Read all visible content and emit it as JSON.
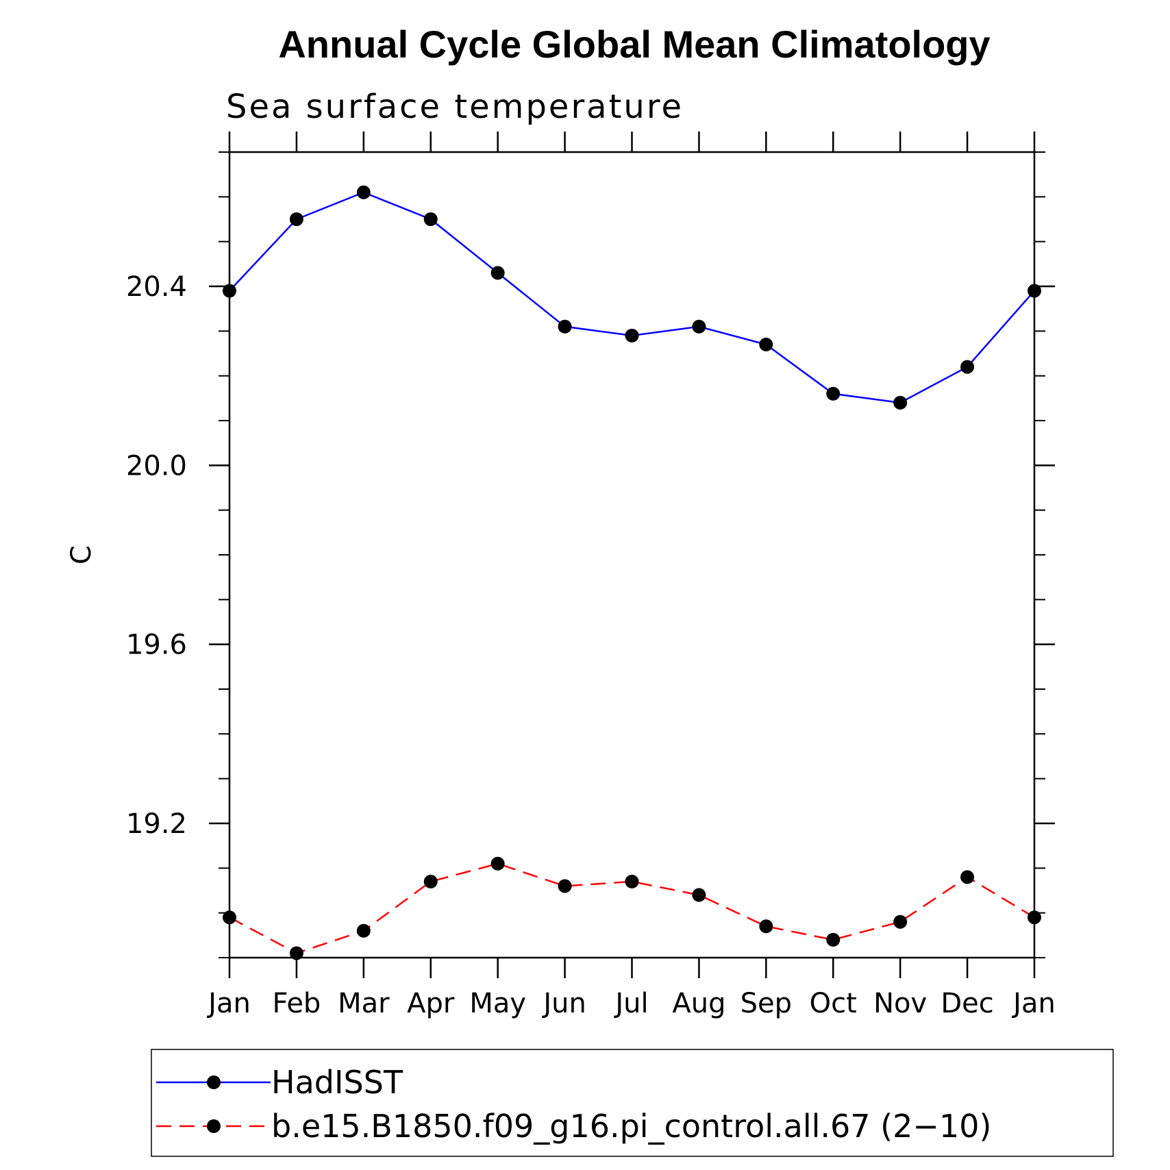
{
  "chart_data": {
    "type": "line",
    "title": "Annual Cycle Global Mean Climatology",
    "subtitle": "Sea surface temperature",
    "xlabel": "",
    "ylabel": "C",
    "categories": [
      "Jan",
      "Feb",
      "Mar",
      "Apr",
      "May",
      "Jun",
      "Jul",
      "Aug",
      "Sep",
      "Oct",
      "Nov",
      "Dec",
      "Jan"
    ],
    "ylim": [
      18.9,
      20.7
    ],
    "yticks": [
      "19.2",
      "19.6",
      "20.0",
      "20.4"
    ],
    "series": [
      {
        "name": "HadISST",
        "color": "#0000ff",
        "dash": "solid",
        "marker": "filled-circle",
        "values": [
          20.39,
          20.55,
          20.61,
          20.55,
          20.43,
          20.31,
          20.29,
          20.31,
          20.27,
          20.16,
          20.14,
          20.22,
          20.39
        ]
      },
      {
        "name": "b.e15.B1850.f09_g16.pi_control.all.67 (2−10)",
        "color": "#ff0000",
        "dash": "dashed",
        "marker": "filled-circle",
        "values": [
          18.99,
          18.91,
          18.96,
          19.07,
          19.11,
          19.06,
          19.07,
          19.04,
          18.97,
          18.94,
          18.98,
          19.08,
          18.99
        ]
      }
    ],
    "grid": false,
    "legend_position": "bottom"
  }
}
